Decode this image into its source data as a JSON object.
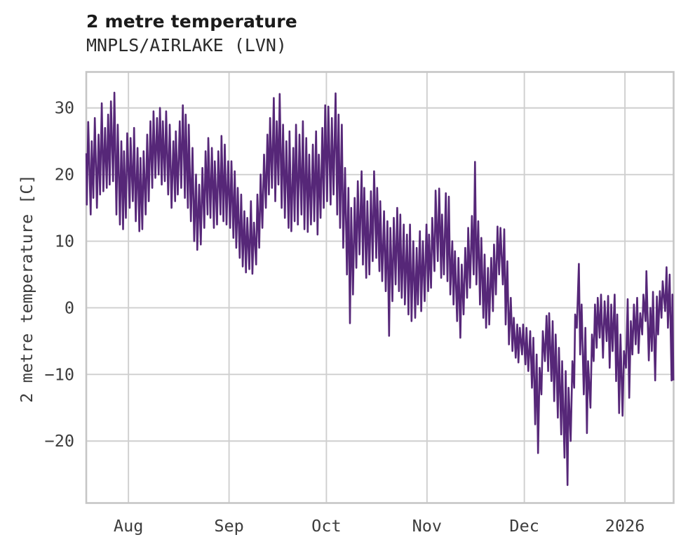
{
  "header": {
    "title": "2 metre temperature",
    "subtitle": "MNPLS/AIRLAKE (LVN)"
  },
  "chart_data": {
    "type": "line",
    "title": "2 metre temperature",
    "subtitle": "MNPLS/AIRLAKE (LVN)",
    "ylabel": "2 metre temperature [C]",
    "line_color": "#562778",
    "grid_color": "#cfcfcf",
    "border_color": "#c6c6c6",
    "background_color": "#ffffff",
    "grid": "on",
    "legend": "none",
    "x_axis": {
      "tick_labels": [
        "Aug",
        "Sep",
        "Oct",
        "Nov",
        "Dec",
        "2026"
      ],
      "tick_day_offsets": [
        13,
        44,
        74,
        105,
        135,
        166
      ],
      "xlim_days": [
        0,
        181
      ]
    },
    "y_axis": {
      "tick_labels": [
        "30",
        "20",
        "10",
        "0",
        "−10",
        "−20"
      ],
      "tick_values": [
        30,
        20,
        10,
        0,
        -10,
        -20
      ],
      "ylim": [
        -29.3,
        35.4
      ]
    },
    "series": [
      {
        "name": "2 metre temperature [C]",
        "sampling": "daily max/min envelope of hourly trace, day 0 = mid-July, day 180 = mid-January 2026",
        "daily_max": [
          27.9,
          25,
          28.5,
          26,
          30.7,
          27,
          29,
          31,
          32.3,
          27.5,
          25,
          23.5,
          26.2,
          25.5,
          27,
          24,
          22.5,
          23.5,
          26,
          28,
          29.5,
          28.5,
          30,
          28,
          29.5,
          27.5,
          25,
          26.5,
          28,
          30.4,
          29,
          27.5,
          24,
          20,
          18.5,
          21,
          23.5,
          25.5,
          24,
          22,
          23.5,
          25.8,
          24.5,
          22,
          22,
          20.5,
          18,
          17,
          14.5,
          13.5,
          16,
          12.8,
          17,
          20,
          23,
          26,
          28.5,
          31.5,
          28,
          32.1,
          27.5,
          25,
          26.5,
          24,
          27.5,
          26,
          28,
          25.5,
          23,
          24.5,
          26.5,
          23,
          27,
          30.4,
          30.2,
          28.5,
          32.2,
          29,
          27.5,
          21,
          18,
          15,
          16.5,
          19,
          20.5,
          18,
          16,
          17.5,
          20.5,
          18,
          16,
          14.5,
          13,
          12,
          13.5,
          15,
          14,
          12.5,
          11,
          12.5,
          10,
          9,
          11.5,
          10,
          12.5,
          11,
          13.5,
          17.6,
          17.9,
          14,
          17.2,
          16.7,
          10,
          8.5,
          7.5,
          6.5,
          9,
          12,
          13.8,
          21.9,
          13,
          10.5,
          8,
          6,
          7.5,
          9.5,
          12.2,
          12,
          11.8,
          7,
          1.5,
          -1.5,
          -2.5,
          -3,
          -2.5,
          -3,
          -3.5,
          -4.5,
          -7,
          -9,
          -3.5,
          -1.2,
          -0.8,
          -2,
          -4,
          -6,
          -8,
          -9.5,
          -12,
          -8,
          -1,
          6.6,
          0.5,
          -3,
          -8,
          -4,
          0.5,
          1.5,
          2,
          1,
          1.8,
          0.5,
          2,
          -1,
          -4,
          -6.5,
          1.3,
          -2,
          0.5,
          1.5,
          -0.8,
          2,
          5.5,
          0,
          2.4,
          1.7,
          2.5,
          4,
          6.1,
          5,
          2
        ],
        "daily_min": [
          15.5,
          14,
          16.5,
          15,
          17,
          17.5,
          18,
          18.5,
          19,
          14,
          12.5,
          11.8,
          13.5,
          15,
          16,
          13,
          11.5,
          11.8,
          14,
          16,
          18,
          19.5,
          20,
          18.5,
          19,
          17,
          15,
          16,
          17,
          18,
          16.5,
          15,
          13,
          10,
          8.7,
          9.5,
          12,
          14,
          13.5,
          12,
          12.5,
          14,
          13,
          12.5,
          12,
          10.5,
          9,
          7.5,
          6.2,
          5.3,
          5.8,
          5.1,
          6.5,
          9,
          12,
          15,
          17,
          18,
          16,
          18.5,
          15,
          13.5,
          12,
          11.5,
          13,
          12.5,
          14,
          11.8,
          11.4,
          12.5,
          13,
          11,
          13.5,
          15,
          16,
          15.5,
          17,
          14,
          12,
          9,
          5,
          -2.3,
          2,
          6,
          8,
          6.5,
          4.5,
          5,
          7,
          7.5,
          5.5,
          4,
          2.5,
          -4.2,
          1,
          3.5,
          2.5,
          1.5,
          0.5,
          -1,
          -2,
          -1.5,
          0.5,
          -0.5,
          1,
          2.5,
          3,
          5.5,
          7,
          4.5,
          5,
          4,
          2,
          0.5,
          -2,
          -4.5,
          -1,
          1.5,
          3,
          5,
          3.5,
          0.5,
          -1.5,
          -3,
          -2.5,
          -0.5,
          2,
          5,
          3.5,
          -2.5,
          -5.5,
          -6.5,
          -7.5,
          -8.2,
          -7,
          -8.5,
          -9.5,
          -12,
          -17.5,
          -21.8,
          -13,
          -8,
          -9.5,
          -11,
          -14,
          -16.5,
          -19,
          -22.5,
          -26.6,
          -20,
          -12,
          -3,
          -7,
          -13,
          -18.8,
          -15,
          -8,
          -6,
          -4.5,
          -7.5,
          -5,
          -9,
          -6.5,
          -11,
          -15.8,
          -16.2,
          -9,
          -13.5,
          -7,
          -5.5,
          -6.8,
          -4,
          -2,
          -7.9,
          -6.5,
          -10.9,
          -4,
          -1.5,
          -0.5,
          -3,
          -10.9
        ]
      }
    ]
  }
}
